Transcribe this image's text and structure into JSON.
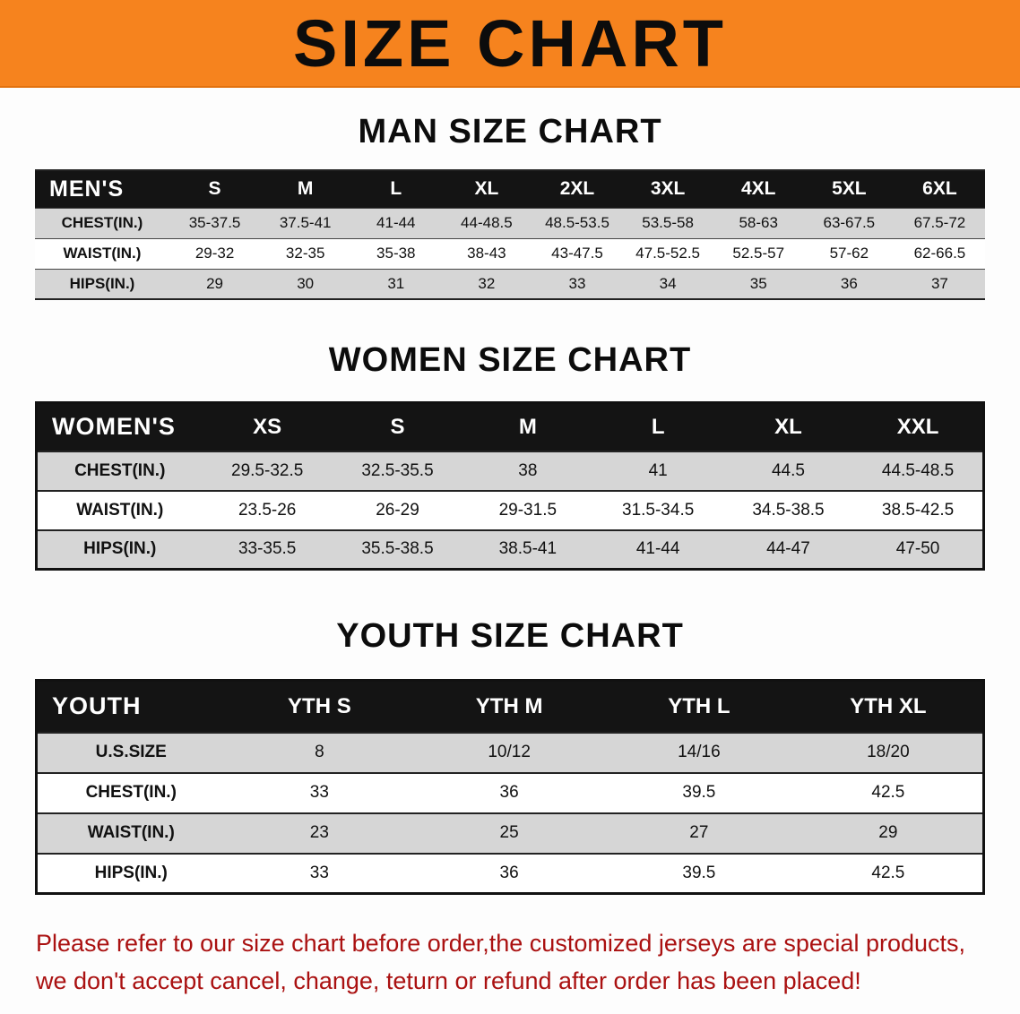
{
  "colors": {
    "banner_bg": "#f6831e",
    "header_bg": "#141414",
    "row_shade": "#d6d6d6",
    "footer_red": "#aa1111"
  },
  "banner": {
    "title": "SIZE CHART"
  },
  "men": {
    "heading": "MAN SIZE CHART",
    "header": [
      "MEN'S",
      "S",
      "M",
      "L",
      "XL",
      "2XL",
      "3XL",
      "4XL",
      "5XL",
      "6XL"
    ],
    "rows": [
      {
        "label": "CHEST(IN.)",
        "values": [
          "35-37.5",
          "37.5-41",
          "41-44",
          "44-48.5",
          "48.5-53.5",
          "53.5-58",
          "58-63",
          "63-67.5",
          "67.5-72"
        ]
      },
      {
        "label": "WAIST(IN.)",
        "values": [
          "29-32",
          "32-35",
          "35-38",
          "38-43",
          "43-47.5",
          "47.5-52.5",
          "52.5-57",
          "57-62",
          "62-66.5"
        ]
      },
      {
        "label": "HIPS(IN.)",
        "values": [
          "29",
          "30",
          "31",
          "32",
          "33",
          "34",
          "35",
          "36",
          "37"
        ]
      }
    ]
  },
  "women": {
    "heading": "WOMEN SIZE CHART",
    "header": [
      "WOMEN'S",
      "XS",
      "S",
      "M",
      "L",
      "XL",
      "XXL"
    ],
    "rows": [
      {
        "label": "CHEST(IN.)",
        "values": [
          "29.5-32.5",
          "32.5-35.5",
          "38",
          "41",
          "44.5",
          "44.5-48.5"
        ]
      },
      {
        "label": "WAIST(IN.)",
        "values": [
          "23.5-26",
          "26-29",
          "29-31.5",
          "31.5-34.5",
          "34.5-38.5",
          "38.5-42.5"
        ]
      },
      {
        "label": "HIPS(IN.)",
        "values": [
          "33-35.5",
          "35.5-38.5",
          "38.5-41",
          "41-44",
          "44-47",
          "47-50"
        ]
      }
    ]
  },
  "youth": {
    "heading": "YOUTH SIZE CHART",
    "header": [
      "YOUTH",
      "YTH S",
      "YTH M",
      "YTH L",
      "YTH XL"
    ],
    "rows": [
      {
        "label": "U.S.SIZE",
        "values": [
          "8",
          "10/12",
          "14/16",
          "18/20"
        ]
      },
      {
        "label": "CHEST(IN.)",
        "values": [
          "33",
          "36",
          "39.5",
          "42.5"
        ]
      },
      {
        "label": "WAIST(IN.)",
        "values": [
          "23",
          "25",
          "27",
          "29"
        ]
      },
      {
        "label": "HIPS(IN.)",
        "values": [
          "33",
          "36",
          "39.5",
          "42.5"
        ]
      }
    ]
  },
  "footer": {
    "line1": "Please refer to our size chart before order,the customized jerseys are special products,",
    "line2": "we don't accept cancel, change, teturn or refund after order has been placed!"
  }
}
